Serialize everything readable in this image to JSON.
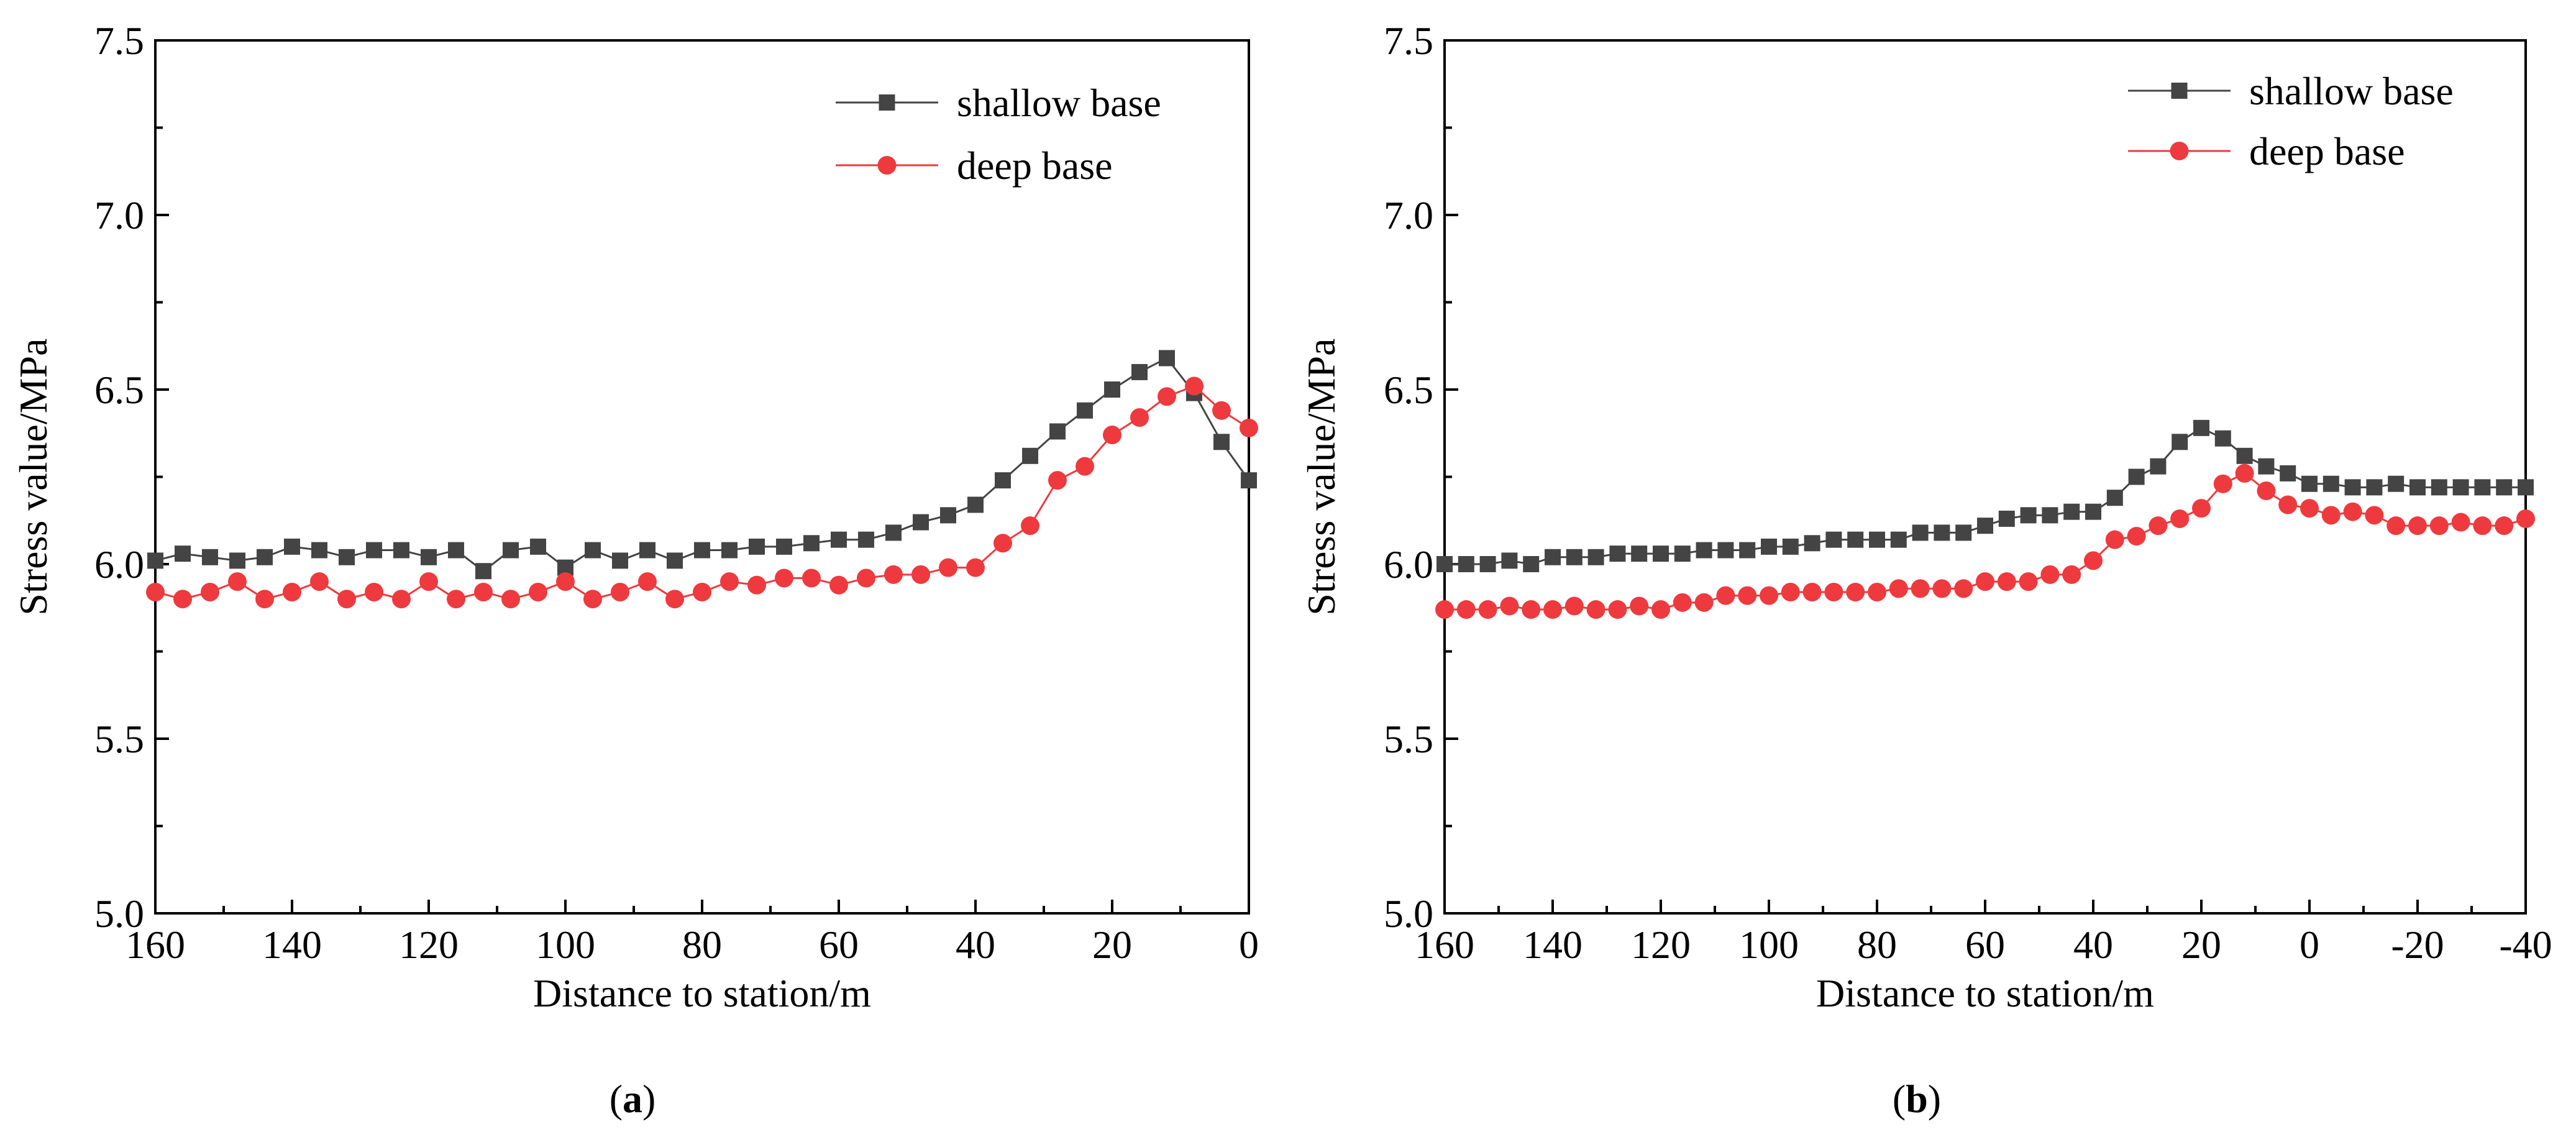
{
  "chart_data": [
    {
      "type": "line",
      "panel": "a",
      "caption_open": "(",
      "caption_letter": "a",
      "caption_close": ")",
      "xlabel": "Distance to station/m",
      "ylabel": "Stress value/MPa",
      "xlim": [
        160,
        0
      ],
      "ylim": [
        5.0,
        7.5
      ],
      "x_ticks": [
        "160",
        "140",
        "120",
        "100",
        "80",
        "60",
        "40",
        "20",
        "0"
      ],
      "x_tick_values": [
        160,
        140,
        120,
        100,
        80,
        60,
        40,
        20,
        0
      ],
      "y_ticks": [
        "5.0",
        "5.5",
        "6.0",
        "6.5",
        "7.0",
        "7.5"
      ],
      "y_tick_values": [
        5.0,
        5.5,
        6.0,
        6.5,
        7.0,
        7.5
      ],
      "legend_position": "top-right",
      "series": [
        {
          "name": "shallow base",
          "color": "#444444",
          "marker": "square",
          "x": [
            160,
            156,
            152,
            148,
            144,
            140,
            136,
            132,
            128,
            124,
            120,
            116,
            112,
            108,
            104,
            100,
            96,
            92,
            88,
            84,
            80,
            76,
            72,
            68,
            64,
            60,
            56,
            52,
            48,
            44,
            40,
            36,
            32,
            28,
            24,
            20,
            16,
            12,
            8,
            4,
            0
          ],
          "values": [
            6.01,
            6.03,
            6.02,
            6.01,
            6.02,
            6.05,
            6.04,
            6.02,
            6.04,
            6.04,
            6.02,
            6.04,
            5.98,
            6.04,
            6.05,
            5.99,
            6.04,
            6.01,
            6.04,
            6.01,
            6.04,
            6.04,
            6.05,
            6.05,
            6.06,
            6.07,
            6.07,
            6.09,
            6.12,
            6.14,
            6.17,
            6.24,
            6.31,
            6.38,
            6.44,
            6.5,
            6.55,
            6.59,
            6.49,
            6.35,
            6.24
          ]
        },
        {
          "name": "deep base",
          "color": "#ee3a3e",
          "marker": "circle",
          "x": [
            160,
            156,
            152,
            148,
            144,
            140,
            136,
            132,
            128,
            124,
            120,
            116,
            112,
            108,
            104,
            100,
            96,
            92,
            88,
            84,
            80,
            76,
            72,
            68,
            64,
            60,
            56,
            52,
            48,
            44,
            40,
            36,
            32,
            28,
            24,
            20,
            16,
            12,
            8,
            4,
            0
          ],
          "values": [
            5.92,
            5.9,
            5.92,
            5.95,
            5.9,
            5.92,
            5.95,
            5.9,
            5.92,
            5.9,
            5.95,
            5.9,
            5.92,
            5.9,
            5.92,
            5.95,
            5.9,
            5.92,
            5.95,
            5.9,
            5.92,
            5.95,
            5.94,
            5.96,
            5.96,
            5.94,
            5.96,
            5.97,
            5.97,
            5.99,
            5.99,
            6.06,
            6.11,
            6.24,
            6.28,
            6.37,
            6.42,
            6.48,
            6.51,
            6.44,
            6.39
          ]
        }
      ]
    },
    {
      "type": "line",
      "panel": "b",
      "caption_open": "(",
      "caption_letter": "b",
      "caption_close": ")",
      "xlabel": "Distance to station/m",
      "ylabel": "Stress value/MPa",
      "xlim": [
        160,
        -40
      ],
      "ylim": [
        5.0,
        7.5
      ],
      "x_ticks": [
        "160",
        "140",
        "120",
        "100",
        "80",
        "60",
        "40",
        "20",
        "0",
        "-20",
        "-40"
      ],
      "x_tick_values": [
        160,
        140,
        120,
        100,
        80,
        60,
        40,
        20,
        0,
        -20,
        -40
      ],
      "y_ticks": [
        "5.0",
        "5.5",
        "6.0",
        "6.5",
        "7.0",
        "7.5"
      ],
      "y_tick_values": [
        5.0,
        5.5,
        6.0,
        6.5,
        7.0,
        7.5
      ],
      "legend_position": "top-right",
      "series": [
        {
          "name": "shallow base",
          "color": "#444444",
          "marker": "square",
          "x": [
            160,
            156,
            152,
            148,
            144,
            140,
            136,
            132,
            128,
            124,
            120,
            116,
            112,
            108,
            104,
            100,
            96,
            92,
            88,
            84,
            80,
            76,
            72,
            68,
            64,
            60,
            56,
            52,
            48,
            44,
            40,
            36,
            32,
            28,
            24,
            20,
            16,
            12,
            8,
            4,
            0,
            -4,
            -8,
            -12,
            -16,
            -20,
            -24,
            -28,
            -32,
            -36,
            -40
          ],
          "values": [
            6.0,
            6.0,
            6.0,
            6.01,
            6.0,
            6.02,
            6.02,
            6.02,
            6.03,
            6.03,
            6.03,
            6.03,
            6.04,
            6.04,
            6.04,
            6.05,
            6.05,
            6.06,
            6.07,
            6.07,
            6.07,
            6.07,
            6.09,
            6.09,
            6.09,
            6.11,
            6.13,
            6.14,
            6.14,
            6.15,
            6.15,
            6.19,
            6.25,
            6.28,
            6.35,
            6.39,
            6.36,
            6.31,
            6.28,
            6.26,
            6.23,
            6.23,
            6.22,
            6.22,
            6.23,
            6.22,
            6.22,
            6.22,
            6.22,
            6.22,
            6.22
          ]
        },
        {
          "name": "deep base",
          "color": "#ee3a3e",
          "marker": "circle",
          "x": [
            160,
            156,
            152,
            148,
            144,
            140,
            136,
            132,
            128,
            124,
            120,
            116,
            112,
            108,
            104,
            100,
            96,
            92,
            88,
            84,
            80,
            76,
            72,
            68,
            64,
            60,
            56,
            52,
            48,
            44,
            40,
            36,
            32,
            28,
            24,
            20,
            16,
            12,
            8,
            4,
            0,
            -4,
            -8,
            -12,
            -16,
            -20,
            -24,
            -28,
            -32,
            -36,
            -40
          ],
          "values": [
            5.87,
            5.87,
            5.87,
            5.88,
            5.87,
            5.87,
            5.88,
            5.87,
            5.87,
            5.88,
            5.87,
            5.89,
            5.89,
            5.91,
            5.91,
            5.91,
            5.92,
            5.92,
            5.92,
            5.92,
            5.92,
            5.93,
            5.93,
            5.93,
            5.93,
            5.95,
            5.95,
            5.95,
            5.97,
            5.97,
            6.01,
            6.07,
            6.08,
            6.11,
            6.13,
            6.16,
            6.23,
            6.26,
            6.21,
            6.17,
            6.16,
            6.14,
            6.15,
            6.14,
            6.11,
            6.11,
            6.11,
            6.12,
            6.11,
            6.11,
            6.13
          ]
        }
      ]
    }
  ]
}
